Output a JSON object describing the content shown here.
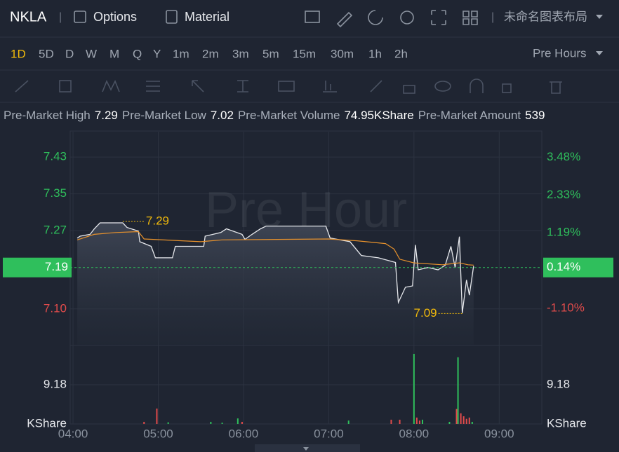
{
  "header": {
    "symbol": "NKLA",
    "options": "Options",
    "material": "Material",
    "layout": "未命名图表布局"
  },
  "timeframes": {
    "items": [
      "1D",
      "5D",
      "D",
      "W",
      "M",
      "Q",
      "Y",
      "1m",
      "2m",
      "3m",
      "5m",
      "15m",
      "30m",
      "1h",
      "2h"
    ],
    "selected": 0
  },
  "session": "Pre Hours",
  "stats": [
    {
      "label": "Pre-Market High",
      "value": "7.29"
    },
    {
      "label": "Pre-Market Low",
      "value": "7.02"
    },
    {
      "label": "Pre-Market Volume",
      "value": "74.95KShare"
    },
    {
      "label": "Pre-Market Amount",
      "value": "539"
    }
  ],
  "chart_data": {
    "type": "line",
    "watermark": "Pre Hour",
    "grid": true,
    "xlim": [
      238,
      570
    ],
    "xticks": [
      {
        "value": 240,
        "label": "04:00"
      },
      {
        "value": 300,
        "label": "05:00"
      },
      {
        "value": 360,
        "label": "06:00"
      },
      {
        "value": 420,
        "label": "07:00"
      },
      {
        "value": 480,
        "label": "08:00"
      },
      {
        "value": 540,
        "label": "09:00"
      }
    ],
    "ylim": [
      7.022,
      7.485
    ],
    "yticks": [
      {
        "value": 7.1,
        "label": "7.10"
      },
      7.27,
      7.35,
      7.43
    ],
    "y2lim": [
      -2.2,
      4.25
    ],
    "y2ticks": [
      {
        "value": -1.1,
        "label": "-1.10%"
      },
      {
        "value": 1.19,
        "label": "1.19%"
      },
      {
        "value": 2.33,
        "label": "2.33%"
      },
      {
        "value": 3.48,
        "label": "3.48%"
      }
    ],
    "last_price": {
      "value": 7.19,
      "label": "7.19"
    },
    "last_change": {
      "value": 0.14,
      "label": "0.14%"
    },
    "series": [
      {
        "color": "#e6e8ec",
        "x": [
          243,
          245,
          252,
          255,
          259,
          275,
          278,
          286,
          287,
          295,
          298,
          310,
          312,
          332,
          333,
          344,
          348,
          359,
          361,
          366,
          372,
          376,
          418,
          421,
          435,
          443,
          455,
          467,
          469,
          474,
          479,
          481,
          483,
          490,
          497,
          502,
          506,
          509,
          512,
          514,
          517,
          519,
          522
        ],
        "values": [
          7.254,
          7.258,
          7.262,
          7.274,
          7.287,
          7.287,
          7.277,
          7.269,
          7.246,
          7.236,
          7.211,
          7.211,
          7.236,
          7.236,
          7.258,
          7.266,
          7.274,
          7.262,
          7.251,
          7.262,
          7.274,
          7.28,
          7.28,
          7.254,
          7.246,
          7.216,
          7.211,
          7.201,
          7.114,
          7.147,
          7.15,
          7.239,
          7.185,
          7.19,
          7.185,
          7.195,
          7.236,
          7.19,
          7.257,
          7.091,
          7.163,
          7.13,
          7.193
        ]
      },
      {
        "color": "#e8922c",
        "x": [
          243,
          255,
          270,
          286,
          290,
          330,
          345,
          420,
          440,
          460,
          466,
          470,
          480,
          500,
          512,
          518,
          522
        ],
        "values": [
          7.25,
          7.262,
          7.266,
          7.268,
          7.252,
          7.246,
          7.25,
          7.252,
          7.248,
          7.242,
          7.23,
          7.208,
          7.2,
          7.196,
          7.2,
          7.196,
          7.195
        ]
      }
    ],
    "annotations": [
      {
        "x": 275,
        "value": 7.29
      },
      {
        "x": 514,
        "value": 7.09
      }
    ],
    "volume": {
      "type": "bar",
      "unit": "KShare",
      "ylim": [
        0,
        18.03
      ],
      "yticks": [
        9.18
      ],
      "x": [
        290,
        299,
        307,
        337,
        345,
        356,
        359,
        434,
        464,
        470,
        480,
        482,
        484,
        486,
        505,
        510,
        511,
        513,
        515,
        517,
        519,
        521
      ],
      "values": [
        0.5,
        3.6,
        0.4,
        0.5,
        0.3,
        1.3,
        0.5,
        0.8,
        1.0,
        1.0,
        16.4,
        1.5,
        0.8,
        1.0,
        0.5,
        3.5,
        15.6,
        2.5,
        1.8,
        1.2,
        1.5,
        0.5
      ],
      "colors": [
        "#e04b4b",
        "#e04b4b",
        "#2fbf5c",
        "#2fbf5c",
        "#2fbf5c",
        "#2fbf5c",
        "#e04b4b",
        "#2fbf5c",
        "#e04b4b",
        "#e04b4b",
        "#2fbf5c",
        "#e04b4b",
        "#e04b4b",
        "#2fbf5c",
        "#2fbf5c",
        "#e04b4b",
        "#2fbf5c",
        "#e04b4b",
        "#e04b4b",
        "#e04b4b",
        "#e04b4b",
        "#2fbf5c"
      ]
    }
  }
}
